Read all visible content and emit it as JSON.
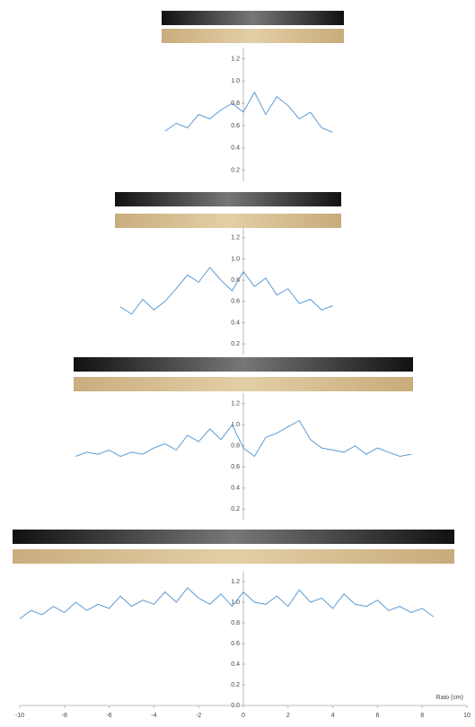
{
  "chart_data": [
    {
      "type": "line",
      "color": "#5b9bd5",
      "xlim": [
        -10,
        10
      ],
      "ylim": [
        0.1,
        1.3
      ],
      "yticks": [
        0.2,
        0.4,
        0.6,
        0.8,
        {
          "value": 1,
          "label": "1.0"
        },
        1.2
      ],
      "x": [
        -3.5,
        -3,
        -2.5,
        -2,
        -1.5,
        -1,
        -0.5,
        0,
        0.5,
        1,
        1.5,
        2,
        2.5,
        3,
        3.5,
        4
      ],
      "values": [
        0.55,
        0.62,
        0.58,
        0.7,
        0.66,
        0.74,
        0.8,
        0.72,
        0.9,
        0.7,
        0.86,
        0.78,
        0.66,
        0.72,
        0.58,
        0.54
      ]
    },
    {
      "type": "line",
      "color": "#5b9bd5",
      "xlim": [
        -10,
        10
      ],
      "ylim": [
        0.1,
        1.3
      ],
      "yticks": [
        0.2,
        0.4,
        0.6,
        0.8,
        {
          "value": 1,
          "label": "1.0"
        },
        1.2
      ],
      "x": [
        -5.5,
        -5,
        -4.5,
        -4,
        -3.5,
        -3,
        -2.5,
        -2,
        -1.5,
        -1,
        -0.5,
        0,
        0.5,
        1,
        1.5,
        2,
        2.5,
        3,
        3.5,
        4
      ],
      "values": [
        0.55,
        0.48,
        0.62,
        0.52,
        0.6,
        0.72,
        0.85,
        0.78,
        0.92,
        0.8,
        0.7,
        0.88,
        0.74,
        0.82,
        0.66,
        0.72,
        0.58,
        0.62,
        0.52,
        0.56
      ]
    },
    {
      "type": "line",
      "color": "#5b9bd5",
      "xlim": [
        -10,
        10
      ],
      "ylim": [
        0.1,
        1.3
      ],
      "yticks": [
        0.2,
        0.4,
        0.6,
        0.8,
        {
          "value": 1,
          "label": "1.0"
        },
        1.2
      ],
      "x": [
        -7.5,
        -7,
        -6.5,
        -6,
        -5.5,
        -5,
        -4.5,
        -4,
        -3.5,
        -3,
        -2.5,
        -2,
        -1.5,
        -1,
        -0.5,
        0,
        0.5,
        1,
        1.5,
        2,
        2.5,
        3,
        3.5,
        4,
        4.5,
        5,
        5.5,
        6,
        6.5,
        7,
        7.5
      ],
      "values": [
        0.7,
        0.74,
        0.72,
        0.76,
        0.7,
        0.74,
        0.72,
        0.78,
        0.82,
        0.76,
        0.9,
        0.84,
        0.96,
        0.86,
        1.0,
        0.78,
        0.7,
        0.88,
        0.92,
        0.98,
        1.04,
        0.86,
        0.78,
        0.76,
        0.74,
        0.8,
        0.72,
        0.78,
        0.74,
        0.7,
        0.72
      ]
    },
    {
      "type": "line",
      "color": "#5b9bd5",
      "xlim": [
        -10,
        10
      ],
      "ylim": [
        0,
        1.3
      ],
      "yticks": [
        {
          "value": 0,
          "label": "0.0"
        },
        0.2,
        0.4,
        0.6,
        0.8,
        {
          "value": 1,
          "label": "1.0"
        },
        1.2
      ],
      "xticks": [
        -10,
        -8,
        -6,
        -4,
        -2,
        0,
        2,
        4,
        6,
        8,
        10
      ],
      "x_label": "Raio (cm)",
      "x": [
        -10,
        -9.5,
        -9,
        -8.5,
        -8,
        -7.5,
        -7,
        -6.5,
        -6,
        -5.5,
        -5,
        -4.5,
        -4,
        -3.5,
        -3,
        -2.5,
        -2,
        -1.5,
        -1,
        -0.5,
        0,
        0.5,
        1,
        1.5,
        2,
        2.5,
        3,
        3.5,
        4,
        4.5,
        5,
        5.5,
        6,
        6.5,
        7,
        7.5,
        8,
        8.5
      ],
      "values": [
        0.84,
        0.92,
        0.88,
        0.96,
        0.9,
        1.0,
        0.92,
        0.98,
        0.94,
        1.06,
        0.96,
        1.02,
        0.98,
        1.1,
        1.0,
        1.14,
        1.04,
        0.98,
        1.08,
        0.96,
        1.1,
        1.0,
        0.98,
        1.06,
        0.96,
        1.12,
        1.0,
        1.04,
        0.94,
        1.08,
        0.98,
        0.96,
        1.02,
        0.92,
        0.96,
        0.9,
        0.94,
        0.86
      ]
    }
  ]
}
